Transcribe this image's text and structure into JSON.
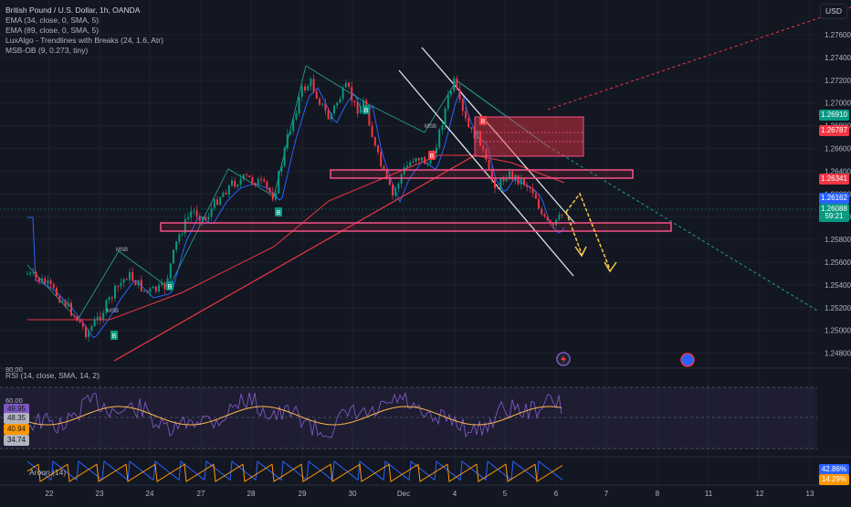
{
  "legend": {
    "symbol": "British Pound / U.S. Dollar, 1h, OANDA",
    "ema34": "EMA (34, close, 0, SMA, 5)",
    "ema89": "EMA (89, close, 0, SMA, 5)",
    "luxalgo": "LuxAlgo - Trendlines with Breaks (24, 1.6, Atr)",
    "msb": "MSB-OB (9, 0.273, tiny)"
  },
  "currency": "USD",
  "price_scale": [
    "1.27600",
    "1.27400",
    "1.27200",
    "1.27000",
    "1.26800",
    "1.26600",
    "1.26400",
    "1.26200",
    "1.26000",
    "1.25800",
    "1.25600",
    "1.25400",
    "1.25200",
    "1.25000",
    "1.24800"
  ],
  "price_badges": [
    {
      "label": "1.26910",
      "color": "#089981"
    },
    {
      "label": "1.26787",
      "color": "#f23645"
    },
    {
      "label": "1.26341",
      "color": "#f23645"
    },
    {
      "label": "1.26162",
      "color": "#2962ff"
    },
    {
      "label": "1.26088",
      "color": "#089981"
    },
    {
      "label": "59:21",
      "color": "#089981"
    }
  ],
  "markers": {
    "msb": "MSB",
    "b": "B"
  },
  "rsi": {
    "title": "RSI (14, close, SMA, 14, 2)",
    "scale_top": "80.00",
    "level": "60.00",
    "badges": [
      {
        "label": "49.95",
        "color": "#7e57c2"
      },
      {
        "label": "48.35",
        "color": "#b2b5be"
      },
      {
        "label": "40.94",
        "color": "#ff9800"
      },
      {
        "label": "34.74",
        "color": "#b2b5be"
      }
    ]
  },
  "aroon": {
    "title": "Aroon (14)",
    "badges": [
      {
        "label": "42.86%",
        "color": "#2962ff"
      },
      {
        "label": "14.29%",
        "color": "#ff9800"
      }
    ]
  },
  "time_axis": [
    "22",
    "23",
    "24",
    "27",
    "28",
    "29",
    "30",
    "Dec",
    "4",
    "5",
    "6",
    "7",
    "8",
    "11",
    "12",
    "13"
  ],
  "colors": {
    "up": "#089981",
    "down": "#f23645",
    "ema34": "#2962ff",
    "ema89": "#f23645",
    "bg": "#131722"
  },
  "chart_data": {
    "type": "candlestick",
    "series_hint": "GBPUSD 1h",
    "ylim": [
      1.247,
      1.2778
    ]
  }
}
